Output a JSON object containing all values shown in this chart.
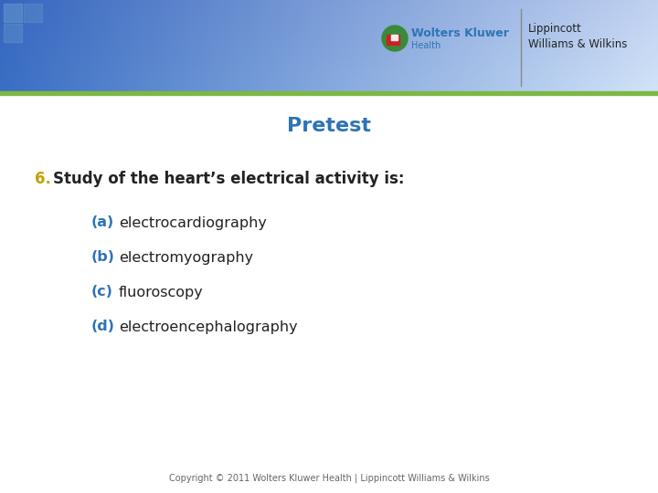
{
  "title": "Pretest",
  "title_color": "#2E74B5",
  "title_fontsize": 16,
  "question_number": "6.",
  "question_number_color": "#C4A000",
  "question_text": "Study of the heart’s electrical activity is:",
  "question_color": "#222222",
  "question_fontsize": 12,
  "options": [
    {
      "label": "(a)",
      "text": "electrocardiography"
    },
    {
      "label": "(b)",
      "text": "electromyography"
    },
    {
      "label": "(c)",
      "text": "fluoroscopy"
    },
    {
      "label": "(d)",
      "text": "electroencephalography"
    }
  ],
  "option_label_color": "#2E74B5",
  "option_text_color": "#222222",
  "option_fontsize": 11.5,
  "copyright_text": "Copyright © 2011 Wolters Kluwer Health | Lippincott Williams & Wilkins",
  "copyright_color": "#666666",
  "copyright_fontsize": 7,
  "header_stripe_color": "#7db843",
  "background_color": "#ffffff",
  "logo_color1": "#2E74B5",
  "logo_color2": "#222222",
  "logo_subtext_color": "#2E74B5",
  "squares_color": "#6699cc"
}
